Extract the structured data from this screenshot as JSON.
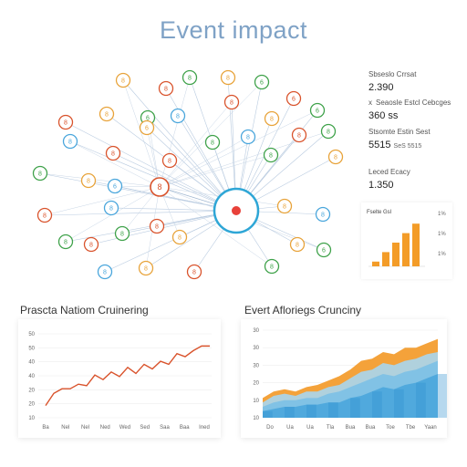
{
  "header": {
    "title": "Event impact"
  },
  "stats": [
    {
      "label": "Sbseslo Crrsat",
      "value": "2.390"
    },
    {
      "label": "Seaosle Estcl Cebcges",
      "value": "360 ss",
      "marker": "x"
    },
    {
      "label": "Stsomte Estin Sest",
      "value": "5515",
      "subvalue": "SeS 5515"
    },
    {
      "label": "Leced Ecacy",
      "value": "1.350"
    }
  ],
  "mini_chart": {
    "title": "Fselte Gsl",
    "tick_labels": [
      "1%",
      "1%",
      "1%"
    ],
    "x_labels": [
      "",
      "",
      "",
      "",
      ""
    ]
  },
  "left_chart": {
    "title": "Prascta Natiom Cruinering",
    "y_ticks": [
      "50",
      "50",
      "40",
      "40",
      "20",
      "20",
      "10"
    ],
    "x_ticks": [
      "Ba",
      "Nel",
      "Nel",
      "Ned",
      "Wed",
      "Sed",
      "Saa",
      "Baa",
      "Ined"
    ]
  },
  "right_chart": {
    "title": "Evert Afloriegs Crunciny",
    "y_ticks": [
      "30",
      "30",
      "30",
      "20",
      "10",
      "10"
    ],
    "x_ticks": [
      "Do",
      "Ua",
      "Ua",
      "Tla",
      "Bua",
      "Bua",
      "Toe",
      "Tbe",
      "Yaan"
    ]
  },
  "chart_data": [
    {
      "type": "line",
      "title": "Prascta Natiom Cruinering",
      "x": [
        0,
        1,
        2,
        3,
        4,
        5,
        6,
        7,
        8,
        9,
        10,
        11,
        12,
        13,
        14,
        15,
        16,
        17,
        18,
        19,
        20
      ],
      "series": [
        {
          "values": [
            8,
            16,
            19,
            19,
            22,
            21,
            28,
            25,
            30,
            27,
            33,
            29,
            35,
            32,
            37,
            35,
            42,
            40,
            44,
            47,
            47
          ]
        }
      ],
      "ylim": [
        0,
        55
      ],
      "colors": [
        "#d9532c"
      ]
    },
    {
      "type": "area",
      "title": "Evert Afloriegs Crunciny",
      "x": [
        0,
        1,
        2,
        3,
        4,
        5,
        6,
        7,
        8,
        9,
        10,
        11,
        12,
        13,
        14,
        15,
        16
      ],
      "series": [
        {
          "values": [
            3,
            4,
            5,
            5,
            6,
            6,
            7,
            7,
            9,
            10,
            12,
            14,
            13,
            15,
            16,
            18,
            20
          ]
        },
        {
          "values": [
            5,
            7,
            8,
            8,
            9,
            9,
            11,
            12,
            14,
            16,
            18,
            20,
            19,
            21,
            22,
            24,
            26
          ]
        },
        {
          "values": [
            7,
            10,
            11,
            10,
            12,
            12,
            14,
            15,
            18,
            21,
            22,
            25,
            24,
            26,
            27,
            29,
            30
          ]
        },
        {
          "values": [
            9,
            12,
            13,
            12,
            14,
            15,
            17,
            19,
            22,
            26,
            27,
            30,
            29,
            32,
            32,
            34,
            36
          ]
        }
      ],
      "ylim": [
        0,
        40
      ],
      "colors": [
        "#4aa6dc",
        "#7cc0e6",
        "#a9d6f0",
        "#f4a23a"
      ]
    },
    {
      "type": "bar",
      "title": "Fselte Gsl",
      "categories": [
        "1",
        "2",
        "3",
        "4",
        "5"
      ],
      "values": [
        1,
        3,
        5,
        7,
        9
      ],
      "ylim": [
        0,
        10
      ],
      "colors": [
        "#f39c28"
      ]
    }
  ],
  "network": {
    "nodes": [
      {
        "color": "#e8a33a",
        "icon": "8"
      },
      {
        "color": "#d9532c",
        "icon": "8"
      },
      {
        "color": "#3fa24a",
        "icon": "8"
      },
      {
        "color": "#e8a33a",
        "icon": "8"
      },
      {
        "color": "#3fa24a",
        "icon": "6"
      },
      {
        "color": "#d9532c",
        "icon": "6"
      },
      {
        "color": "#3fa24a",
        "icon": "6"
      },
      {
        "color": "#e8a33a",
        "icon": "8"
      },
      {
        "color": "#3fa24a",
        "icon": "6"
      },
      {
        "color": "#4aa6dc",
        "icon": "8"
      },
      {
        "color": "#d9532c",
        "icon": "8"
      },
      {
        "color": "#e8a33a",
        "icon": "8"
      },
      {
        "color": "#3fa24a",
        "icon": "8"
      },
      {
        "color": "#d9532c",
        "icon": "8"
      },
      {
        "color": "#4aa6dc",
        "icon": "8"
      },
      {
        "color": "#d9532c",
        "icon": "8"
      },
      {
        "color": "#e8a33a",
        "icon": "6"
      },
      {
        "color": "#3fa24a",
        "icon": "8"
      },
      {
        "color": "#4aa6dc",
        "icon": "8"
      },
      {
        "color": "#d9532c",
        "icon": "8"
      },
      {
        "color": "#3fa24a",
        "icon": "8"
      },
      {
        "color": "#e8a33a",
        "icon": "8"
      },
      {
        "color": "#4aa6dc",
        "icon": "6"
      },
      {
        "color": "#d9532c",
        "icon": "8"
      },
      {
        "color": "#3fa24a",
        "icon": "8"
      },
      {
        "color": "#e8a33a",
        "icon": "8"
      },
      {
        "color": "#d9532c",
        "icon": "8"
      },
      {
        "color": "#4aa6dc",
        "icon": "8"
      },
      {
        "color": "#3fa24a",
        "icon": "8"
      },
      {
        "color": "#d9532c",
        "icon": "8"
      },
      {
        "color": "#e8a33a",
        "icon": "8"
      },
      {
        "color": "#4aa6dc",
        "icon": "8"
      },
      {
        "color": "#3fa24a",
        "icon": "8"
      },
      {
        "color": "#d9532c",
        "icon": "8"
      },
      {
        "color": "#e8a33a",
        "icon": "8"
      },
      {
        "color": "#4aa6dc",
        "icon": "8"
      }
    ],
    "hub": {
      "color": "#2ea6d6",
      "dot": "#e8413a"
    }
  }
}
